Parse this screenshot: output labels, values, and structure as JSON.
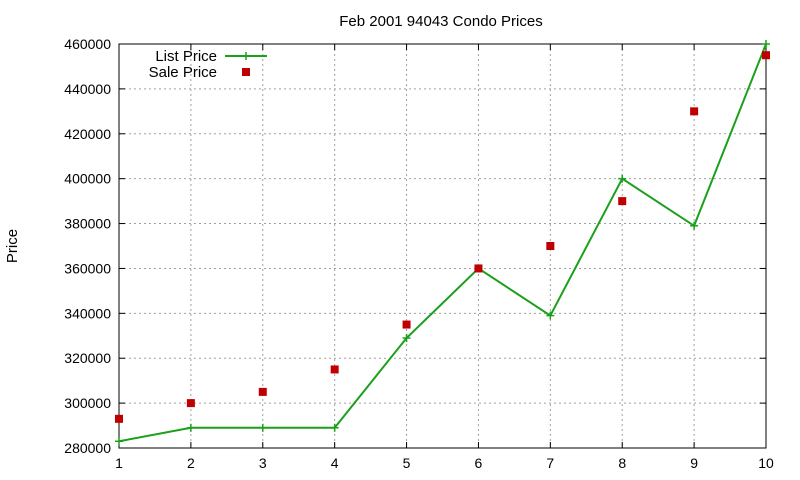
{
  "chart_data": {
    "type": "line",
    "title": "Feb 2001 94043 Condo Prices",
    "xlabel": "",
    "ylabel": "Price",
    "xlim": [
      1,
      10
    ],
    "ylim": [
      280000,
      460000
    ],
    "x_ticks": [
      1,
      2,
      3,
      4,
      5,
      6,
      7,
      8,
      9,
      10
    ],
    "y_ticks": [
      280000,
      300000,
      320000,
      340000,
      360000,
      380000,
      400000,
      420000,
      440000,
      460000
    ],
    "grid": true,
    "legend_position": "top-left",
    "series": [
      {
        "name": "List Price",
        "style": "lines+points",
        "marker": "plus",
        "color": "#1aa01a",
        "x": [
          1,
          2,
          3,
          4,
          5,
          6,
          7,
          8,
          9,
          10
        ],
        "y": [
          283000,
          289000,
          289000,
          289000,
          329000,
          360000,
          339000,
          400000,
          379000,
          460000
        ]
      },
      {
        "name": "Sale Price",
        "style": "points",
        "marker": "square",
        "color": "#c00000",
        "x": [
          1,
          2,
          3,
          4,
          5,
          6,
          7,
          8,
          9,
          10
        ],
        "y": [
          293000,
          300000,
          305000,
          315000,
          335000,
          360000,
          370000,
          390000,
          430000,
          455000
        ]
      }
    ]
  }
}
